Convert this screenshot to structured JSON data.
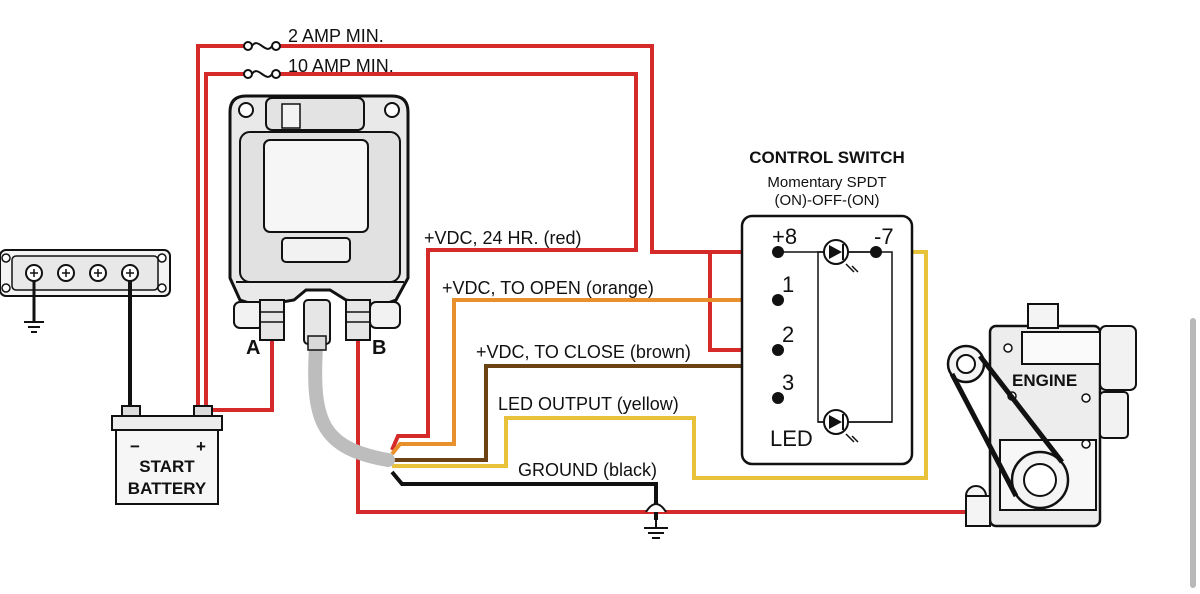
{
  "fuses": {
    "fuse_2a": "2 AMP MIN.",
    "fuse_10a": "10 AMP MIN."
  },
  "relay": {
    "terminal_a": "A",
    "terminal_b": "B"
  },
  "wires": {
    "vdc_24hr": "+VDC, 24 HR. (red)",
    "vdc_open": "+VDC, TO OPEN (orange)",
    "vdc_close": "+VDC, TO CLOSE (brown)",
    "led_output": "LED OUTPUT (yellow)",
    "ground": "GROUND (black)"
  },
  "switch": {
    "title": "CONTROL SWITCH",
    "subtitle": "Momentary SPDT",
    "mode": "(ON)-OFF-(ON)",
    "pin_plus8": "+8",
    "pin_minus7": "-7",
    "pin_1": "1",
    "pin_2": "2",
    "pin_3": "3",
    "led": "LED"
  },
  "battery": {
    "line1": "START",
    "line2": "BATTERY",
    "minus": "−",
    "plus": "+"
  },
  "engine": {
    "label": "ENGINE"
  },
  "colors": {
    "red": "#d42a2a",
    "orange": "#e8912c",
    "brown": "#6b4214",
    "yellow": "#e8c23a",
    "black": "#111111",
    "gray_cable": "#bdbdbd"
  }
}
